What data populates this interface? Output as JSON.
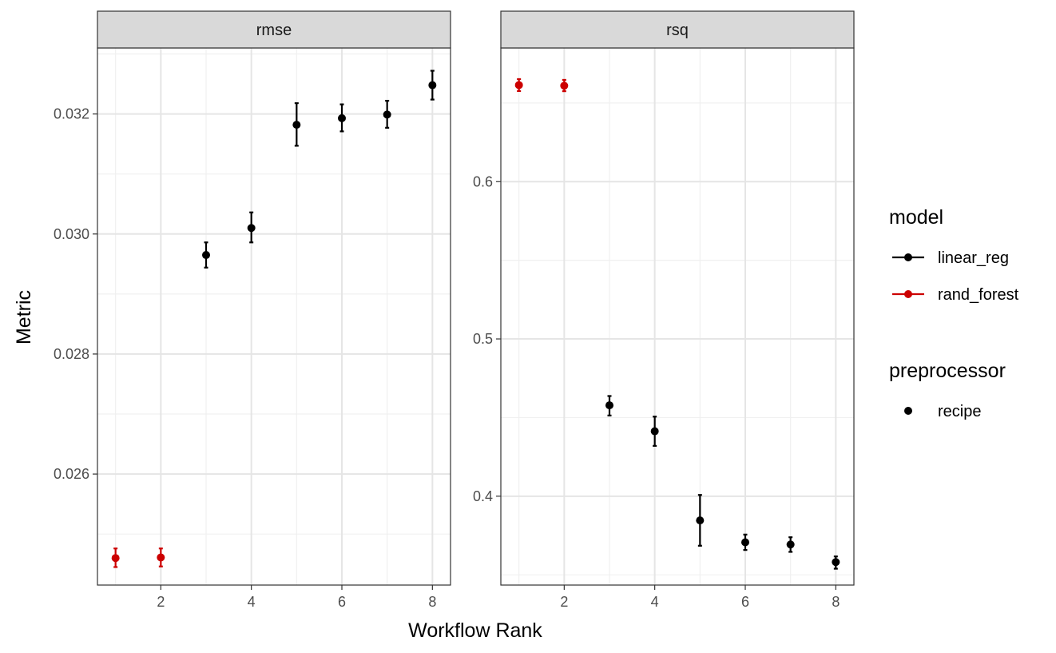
{
  "chart_data": {
    "type": "scatter",
    "facets": [
      "rmse",
      "rsq"
    ],
    "xlabel": "Workflow Rank",
    "ylabel": "Metric",
    "x_ticks": [
      2,
      4,
      6,
      8
    ],
    "xlim": [
      0.6,
      8.4
    ],
    "grid": true,
    "legend_placement": "right",
    "colors": {
      "linear_reg": "#000000",
      "rand_forest": "#cc0000"
    },
    "legend": {
      "model": {
        "title": "model",
        "entries": [
          "linear_reg",
          "rand_forest"
        ]
      },
      "preprocessor": {
        "title": "preprocessor",
        "entries": [
          "recipe"
        ]
      }
    },
    "panels": [
      {
        "metric": "rmse",
        "ylim": [
          0.02415,
          0.0331
        ],
        "y_ticks": [
          0.026,
          0.028,
          0.03,
          0.032
        ],
        "y_tick_labels": [
          "0.026",
          "0.028",
          "0.030",
          "0.032"
        ],
        "points": [
          {
            "x": 1,
            "y": 0.0246,
            "lo": 0.02445,
            "hi": 0.02476,
            "model": "rand_forest"
          },
          {
            "x": 2,
            "y": 0.02461,
            "lo": 0.02446,
            "hi": 0.02476,
            "model": "rand_forest"
          },
          {
            "x": 3,
            "y": 0.02965,
            "lo": 0.02944,
            "hi": 0.02986,
            "model": "linear_reg"
          },
          {
            "x": 4,
            "y": 0.0301,
            "lo": 0.02986,
            "hi": 0.03036,
            "model": "linear_reg"
          },
          {
            "x": 5,
            "y": 0.03182,
            "lo": 0.03147,
            "hi": 0.03218,
            "model": "linear_reg"
          },
          {
            "x": 6,
            "y": 0.03193,
            "lo": 0.03171,
            "hi": 0.03216,
            "model": "linear_reg"
          },
          {
            "x": 7,
            "y": 0.03199,
            "lo": 0.03177,
            "hi": 0.03222,
            "model": "linear_reg"
          },
          {
            "x": 8,
            "y": 0.03248,
            "lo": 0.03224,
            "hi": 0.03272,
            "model": "linear_reg"
          }
        ]
      },
      {
        "metric": "rsq",
        "ylim": [
          0.3435,
          0.685
        ],
        "y_ticks": [
          0.4,
          0.5,
          0.6
        ],
        "y_tick_labels": [
          "0.4",
          "0.5",
          "0.6"
        ],
        "points": [
          {
            "x": 1,
            "y": 0.6614,
            "lo": 0.6576,
            "hi": 0.6652,
            "model": "rand_forest"
          },
          {
            "x": 2,
            "y": 0.661,
            "lo": 0.6575,
            "hi": 0.6647,
            "model": "rand_forest"
          },
          {
            "x": 3,
            "y": 0.4578,
            "lo": 0.4513,
            "hi": 0.4637,
            "model": "linear_reg"
          },
          {
            "x": 4,
            "y": 0.4413,
            "lo": 0.432,
            "hi": 0.4506,
            "model": "linear_reg"
          },
          {
            "x": 5,
            "y": 0.3846,
            "lo": 0.3685,
            "hi": 0.4008,
            "model": "linear_reg"
          },
          {
            "x": 6,
            "y": 0.3707,
            "lo": 0.3658,
            "hi": 0.3756,
            "model": "linear_reg"
          },
          {
            "x": 7,
            "y": 0.3693,
            "lo": 0.3646,
            "hi": 0.3739,
            "model": "linear_reg"
          },
          {
            "x": 8,
            "y": 0.3581,
            "lo": 0.3539,
            "hi": 0.3617,
            "model": "linear_reg"
          }
        ]
      }
    ]
  }
}
